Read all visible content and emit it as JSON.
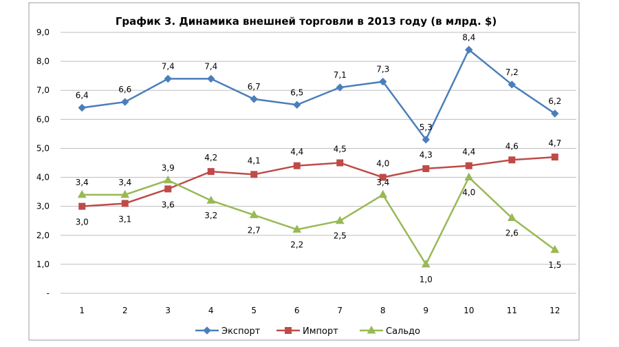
{
  "chart_data": {
    "type": "line",
    "title": "График 3. Динамика внешней торговли в 2013 году (в млрд. $)",
    "xlabel": "",
    "ylabel": "",
    "categories": [
      "1",
      "2",
      "3",
      "4",
      "5",
      "6",
      "7",
      "8",
      "9",
      "10",
      "11",
      "12"
    ],
    "ylim": [
      0,
      9
    ],
    "y_ticks": [
      "-",
      "1,0",
      "2,0",
      "3,0",
      "4,0",
      "5,0",
      "6,0",
      "7,0",
      "8,0",
      "9,0"
    ],
    "grid": true,
    "legend_position": "bottom",
    "series": [
      {
        "name": "Экспорт",
        "color": "#4a7ebb",
        "marker": "diamond",
        "values": [
          6.4,
          6.6,
          7.4,
          7.4,
          6.7,
          6.5,
          7.1,
          7.3,
          5.3,
          8.4,
          7.2,
          6.2
        ],
        "labels": [
          "6,4",
          "6,6",
          "7,4",
          "7,4",
          "6,7",
          "6,5",
          "7,1",
          "7,3",
          "5,3",
          "8,4",
          "7,2",
          "6,2"
        ]
      },
      {
        "name": "Импорт",
        "color": "#be4b48",
        "marker": "square",
        "values": [
          3.0,
          3.1,
          3.6,
          4.2,
          4.1,
          4.4,
          4.5,
          4.0,
          4.3,
          4.4,
          4.6,
          4.7
        ],
        "labels": [
          "3,0",
          "3,1",
          "3,6",
          "4,2",
          "4,1",
          "4,4",
          "4,5",
          "4,0",
          "4,3",
          "4,4",
          "4,6",
          "4,7"
        ]
      },
      {
        "name": "Сальдо",
        "color": "#98b954",
        "marker": "triangle",
        "values": [
          3.4,
          3.4,
          3.9,
          3.2,
          2.7,
          2.2,
          2.5,
          3.4,
          1.0,
          4.0,
          2.6,
          1.5
        ],
        "labels": [
          "3,4",
          "3,4",
          "3,9",
          "3,2",
          "2,7",
          "2,2",
          "2,5",
          "3,4",
          "1,0",
          "4,0",
          "2,6",
          "1,5"
        ]
      }
    ]
  }
}
